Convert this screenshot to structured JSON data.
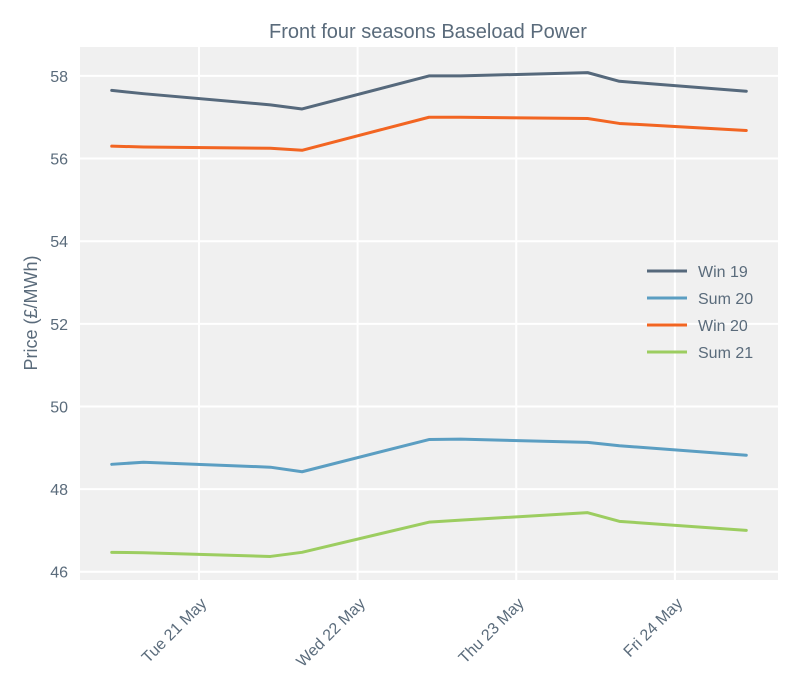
{
  "chart_data": {
    "type": "line",
    "title": "Front four seasons Baseload Power",
    "xlabel": "",
    "ylabel": "Price (£/MWh)",
    "x": [
      0,
      0.2,
      1,
      1.2,
      2,
      2.2,
      3,
      3.2,
      4
    ],
    "xlim": [
      -0.2,
      4.2
    ],
    "ylim": [
      45.8,
      58.7
    ],
    "yticks": [
      46,
      48,
      50,
      52,
      54,
      56,
      58
    ],
    "xticks": [
      {
        "value": 0.55,
        "label": "Tue 21 May"
      },
      {
        "value": 1.55,
        "label": "Wed 22 May"
      },
      {
        "value": 2.55,
        "label": "Thu 23 May"
      },
      {
        "value": 3.55,
        "label": "Fri 24 May"
      }
    ],
    "grid": true,
    "background_color": "#f0f0f0",
    "grid_color": "#ffffff",
    "legend_position": "center-right",
    "series": [
      {
        "name": "Win 19",
        "color": "#56697c",
        "values": [
          57.65,
          57.57,
          57.3,
          57.2,
          58.0,
          58.0,
          58.08,
          57.87,
          57.63
        ]
      },
      {
        "name": "Sum 20",
        "color": "#5b9ec2",
        "values": [
          48.6,
          48.65,
          48.53,
          48.42,
          49.2,
          49.21,
          49.13,
          49.05,
          48.82
        ]
      },
      {
        "name": "Win 20",
        "color": "#f26522",
        "values": [
          56.3,
          56.28,
          56.25,
          56.2,
          57.0,
          57.0,
          56.97,
          56.85,
          56.68
        ]
      },
      {
        "name": "Sum 21",
        "color": "#9ccd60",
        "values": [
          46.47,
          46.46,
          46.37,
          46.47,
          47.2,
          47.25,
          47.43,
          47.22,
          47.0
        ]
      }
    ]
  }
}
